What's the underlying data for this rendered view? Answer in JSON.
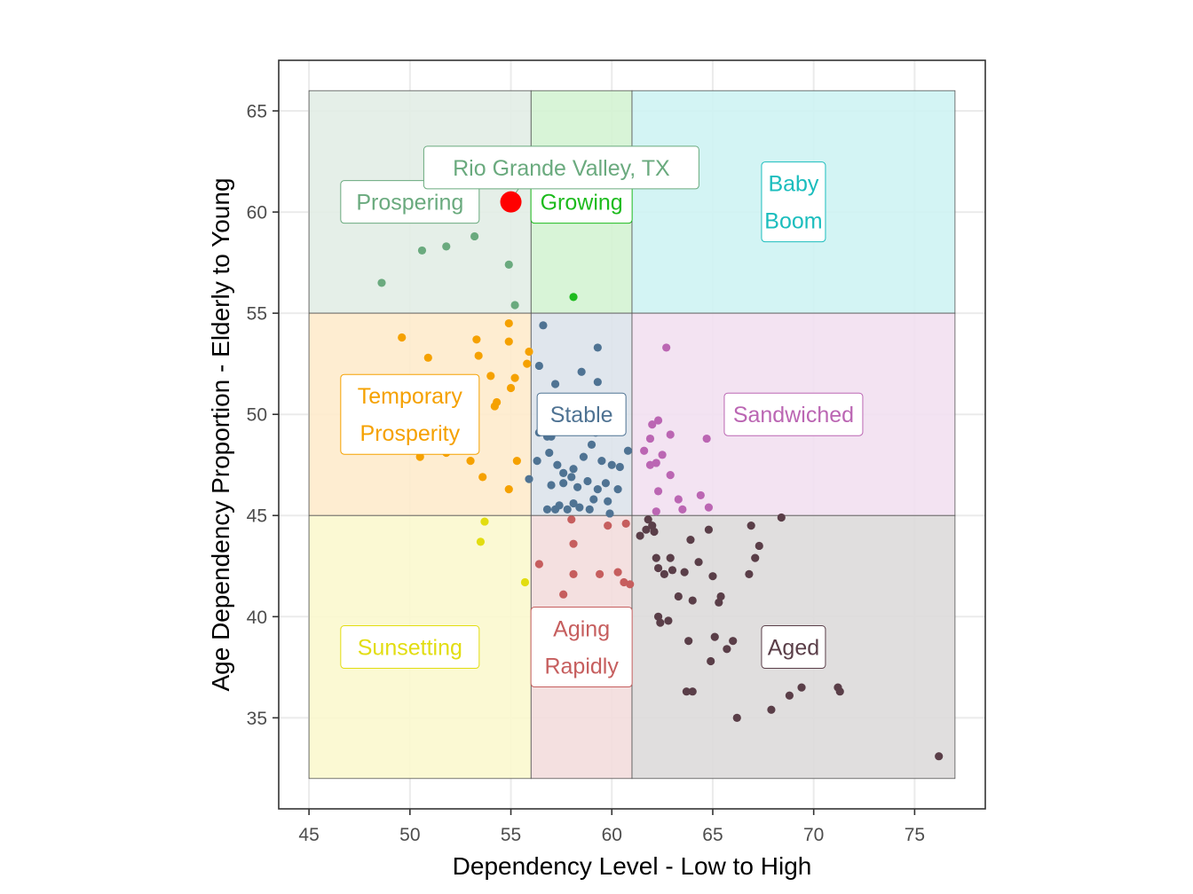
{
  "chart_data": {
    "type": "scatter",
    "title": "",
    "xlabel": "Dependency Level - Low to High",
    "ylabel": "Age Dependency Proportion - Elderly to Young",
    "xlim": [
      43.5,
      78.5
    ],
    "ylim": [
      30.5,
      67.5
    ],
    "x_ticks": [
      45,
      50,
      55,
      60,
      65,
      70,
      75
    ],
    "y_ticks": [
      35,
      40,
      45,
      50,
      55,
      60,
      65
    ],
    "grid": true,
    "legend": "none",
    "regions": [
      {
        "name": "Prospering",
        "label_lines": [
          "Prospering"
        ],
        "x0": 45,
        "x1": 56,
        "y0": 55,
        "y1": 66,
        "fill": "#e1ede5",
        "color": "#6aaa7e",
        "label_x": 50,
        "label_y": 60.5
      },
      {
        "name": "Growing",
        "label_lines": [
          "Growing"
        ],
        "x0": 56,
        "x1": 61,
        "y0": 55,
        "y1": 66,
        "fill": "#d3f3d2",
        "color": "#1dbb1d",
        "label_x": 58.5,
        "label_y": 60.5
      },
      {
        "name": "Baby Boom",
        "label_lines": [
          "Baby",
          "Boom"
        ],
        "x0": 61,
        "x1": 77,
        "y0": 55,
        "y1": 66,
        "fill": "#cdf3f2",
        "color": "#1bbdbd",
        "label_x": 69,
        "label_y": 60.5
      },
      {
        "name": "Temporary Prosperity",
        "label_lines": [
          "Temporary",
          "Prosperity"
        ],
        "x0": 45,
        "x1": 56,
        "y0": 45,
        "y1": 55,
        "fill": "#feeacb",
        "color": "#f5a100",
        "label_x": 50,
        "label_y": 50
      },
      {
        "name": "Stable",
        "label_lines": [
          "Stable"
        ],
        "x0": 56,
        "x1": 61,
        "y0": 45,
        "y1": 55,
        "fill": "#dce3ea",
        "color": "#4f7393",
        "label_x": 58.5,
        "label_y": 50
      },
      {
        "name": "Sandwiched",
        "label_lines": [
          "Sandwiched"
        ],
        "x0": 61,
        "x1": 77,
        "y0": 45,
        "y1": 55,
        "fill": "#f1dff0",
        "color": "#bb66b3",
        "label_x": 69,
        "label_y": 50
      },
      {
        "name": "Sunsetting",
        "label_lines": [
          "Sunsetting"
        ],
        "x0": 45,
        "x1": 56,
        "y0": 32,
        "y1": 45,
        "fill": "#fbf8cd",
        "color": "#e2dd10",
        "label_x": 50,
        "label_y": 38.5
      },
      {
        "name": "Aging Rapidly",
        "label_lines": [
          "Aging",
          "Rapidly"
        ],
        "x0": 56,
        "x1": 61,
        "y0": 32,
        "y1": 45,
        "fill": "#f3dcdc",
        "color": "#c65e5e",
        "label_x": 58.5,
        "label_y": 38.5
      },
      {
        "name": "Aged",
        "label_lines": [
          "Aged"
        ],
        "x0": 61,
        "x1": 77,
        "y0": 32,
        "y1": 45,
        "fill": "#dcd9da",
        "color": "#5a3e48",
        "label_x": 69,
        "label_y": 38.5
      }
    ],
    "highlight": {
      "label": "Rio Grande Valley, TX",
      "x": 55,
      "y": 60.5,
      "color": "#ff0000",
      "label_color": "#6aaa7e",
      "label_x": 57.5,
      "label_y": 62.2
    },
    "series": [
      {
        "name": "Prospering",
        "color": "#6aaa7e",
        "points": [
          [
            48.6,
            56.5
          ],
          [
            50.6,
            58.1
          ],
          [
            51.8,
            58.3
          ],
          [
            53.2,
            58.8
          ],
          [
            54.9,
            57.4
          ],
          [
            55.2,
            55.4
          ]
        ]
      },
      {
        "name": "Growing",
        "color": "#1dbb1d",
        "points": [
          [
            58.1,
            55.8
          ]
        ]
      },
      {
        "name": "Temporary Prosperity",
        "color": "#f5a100",
        "points": [
          [
            49.6,
            53.8
          ],
          [
            50.9,
            52.8
          ],
          [
            53.3,
            53.7
          ],
          [
            53.4,
            52.9
          ],
          [
            54.0,
            51.9
          ],
          [
            54.9,
            54.5
          ],
          [
            54.9,
            53.6
          ],
          [
            55.0,
            51.3
          ],
          [
            55.2,
            51.8
          ],
          [
            55.8,
            52.5
          ],
          [
            55.9,
            53.1
          ],
          [
            54.2,
            50.4
          ],
          [
            54.3,
            50.6
          ],
          [
            50.5,
            47.9
          ],
          [
            51.8,
            48.1
          ],
          [
            53.0,
            47.7
          ],
          [
            53.6,
            46.9
          ],
          [
            54.9,
            46.3
          ],
          [
            55.3,
            47.7
          ]
        ]
      },
      {
        "name": "Stable",
        "color": "#4f7393",
        "points": [
          [
            56.6,
            54.4
          ],
          [
            56.4,
            52.4
          ],
          [
            57.2,
            51.5
          ],
          [
            58.5,
            52.1
          ],
          [
            59.3,
            53.3
          ],
          [
            59.3,
            51.6
          ],
          [
            56.4,
            49.1
          ],
          [
            56.8,
            48.9
          ],
          [
            57.0,
            48.9
          ],
          [
            57.6,
            49.3
          ],
          [
            58.7,
            49.7
          ],
          [
            59.2,
            49.1
          ],
          [
            60.1,
            49.9
          ],
          [
            60.8,
            48.2
          ],
          [
            56.3,
            47.7
          ],
          [
            56.9,
            48.1
          ],
          [
            57.3,
            47.5
          ],
          [
            57.6,
            47.1
          ],
          [
            58.1,
            47.3
          ],
          [
            58.6,
            47.9
          ],
          [
            59.0,
            48.5
          ],
          [
            59.5,
            47.7
          ],
          [
            60.0,
            47.5
          ],
          [
            60.4,
            47.4
          ],
          [
            55.9,
            46.8
          ],
          [
            57.0,
            46.5
          ],
          [
            57.6,
            46.6
          ],
          [
            58.0,
            46.9
          ],
          [
            58.3,
            46.4
          ],
          [
            58.8,
            46.7
          ],
          [
            59.3,
            46.3
          ],
          [
            59.7,
            46.6
          ],
          [
            60.3,
            46.3
          ],
          [
            56.8,
            45.3
          ],
          [
            57.4,
            45.5
          ],
          [
            57.8,
            45.3
          ],
          [
            58.4,
            45.4
          ],
          [
            58.9,
            45.3
          ],
          [
            59.8,
            45.7
          ],
          [
            59.9,
            45.1
          ],
          [
            57.2,
            45.3
          ],
          [
            58.1,
            45.6
          ],
          [
            59.1,
            45.8
          ]
        ]
      },
      {
        "name": "Sandwiched",
        "color": "#bb66b3",
        "points": [
          [
            62.7,
            53.3
          ],
          [
            62.0,
            49.5
          ],
          [
            62.3,
            49.7
          ],
          [
            62.9,
            49.0
          ],
          [
            64.7,
            48.8
          ],
          [
            61.9,
            48.8
          ],
          [
            61.6,
            48.2
          ],
          [
            62.5,
            48.0
          ],
          [
            62.2,
            47.6
          ],
          [
            61.9,
            47.5
          ],
          [
            62.9,
            47.0
          ],
          [
            62.3,
            46.2
          ],
          [
            63.3,
            45.8
          ],
          [
            64.4,
            46.0
          ],
          [
            64.8,
            45.4
          ],
          [
            62.2,
            45.2
          ],
          [
            63.5,
            45.3
          ]
        ]
      },
      {
        "name": "Sunsetting",
        "color": "#e2dd10",
        "points": [
          [
            53.7,
            44.7
          ],
          [
            53.5,
            43.7
          ],
          [
            55.7,
            41.7
          ]
        ]
      },
      {
        "name": "Aging Rapidly",
        "color": "#c65e5e",
        "points": [
          [
            58.0,
            44.8
          ],
          [
            59.8,
            44.5
          ],
          [
            60.7,
            44.6
          ],
          [
            58.1,
            43.6
          ],
          [
            56.4,
            42.6
          ],
          [
            58.1,
            42.1
          ],
          [
            59.4,
            42.1
          ],
          [
            60.3,
            42.2
          ],
          [
            60.6,
            41.7
          ],
          [
            60.9,
            41.6
          ],
          [
            57.6,
            41.1
          ],
          [
            57.2,
            40.1
          ]
        ]
      },
      {
        "name": "Aged",
        "color": "#5a3e48",
        "points": [
          [
            61.8,
            44.8
          ],
          [
            62.0,
            44.5
          ],
          [
            61.7,
            44.3
          ],
          [
            62.1,
            44.2
          ],
          [
            61.4,
            44.0
          ],
          [
            63.9,
            43.8
          ],
          [
            64.8,
            44.3
          ],
          [
            66.9,
            44.5
          ],
          [
            68.4,
            44.9
          ],
          [
            62.2,
            42.9
          ],
          [
            62.9,
            42.9
          ],
          [
            62.3,
            42.4
          ],
          [
            63.0,
            42.3
          ],
          [
            62.6,
            42.1
          ],
          [
            63.6,
            42.2
          ],
          [
            64.3,
            42.7
          ],
          [
            65.0,
            42.0
          ],
          [
            66.8,
            42.1
          ],
          [
            67.1,
            42.9
          ],
          [
            67.3,
            43.5
          ],
          [
            63.3,
            41.0
          ],
          [
            64.0,
            40.8
          ],
          [
            65.3,
            40.7
          ],
          [
            65.4,
            41.0
          ],
          [
            62.4,
            39.7
          ],
          [
            62.8,
            39.8
          ],
          [
            62.3,
            40.0
          ],
          [
            63.8,
            38.8
          ],
          [
            64.9,
            37.8
          ],
          [
            65.7,
            38.4
          ],
          [
            65.1,
            39.0
          ],
          [
            66.0,
            38.8
          ],
          [
            63.7,
            36.3
          ],
          [
            64.0,
            36.3
          ],
          [
            66.2,
            35.0
          ],
          [
            67.9,
            35.4
          ],
          [
            68.8,
            36.1
          ],
          [
            69.4,
            36.5
          ],
          [
            71.2,
            36.5
          ],
          [
            71.3,
            36.3
          ],
          [
            76.2,
            33.1
          ]
        ]
      }
    ]
  }
}
